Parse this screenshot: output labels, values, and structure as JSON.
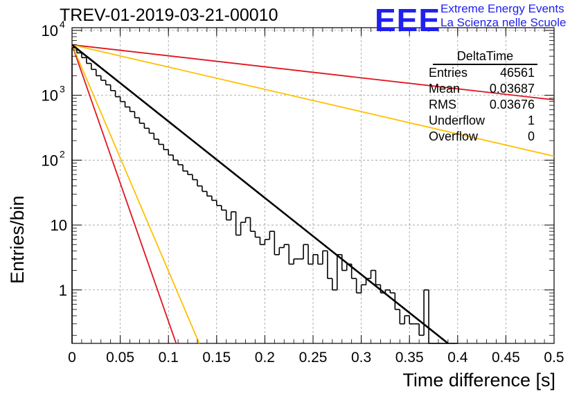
{
  "header": {
    "title": "TREV-01-2019-03-21-00010",
    "logo_text": "EEE",
    "org_line1": "Extreme Energy Events",
    "org_line2": "La Scienza nelle Scuole"
  },
  "stats_box": {
    "name": "DeltaTime",
    "rows": [
      {
        "label": "Entries",
        "value": "46561"
      },
      {
        "label": "Mean",
        "value": "0.03687"
      },
      {
        "label": "RMS",
        "value": "0.03676"
      },
      {
        "label": "Underflow",
        "value": "1"
      },
      {
        "label": "Overflow",
        "value": "0"
      }
    ]
  },
  "colors": {
    "histogram": "#000000",
    "fit": "#000000",
    "red_curve": "#e0141e",
    "orange_curve": "#ffc000",
    "logo": "#2020ee"
  },
  "chart_data": {
    "type": "line",
    "title": "TREV-01-2019-03-21-00010",
    "xlabel": "Time difference [s]",
    "ylabel": "Entries/bin",
    "xlim": [
      0,
      0.5
    ],
    "ylim": [
      0.15,
      11000
    ],
    "yscale": "log",
    "grid": true,
    "x_ticks": [
      "0",
      "0.05",
      "0.1",
      "0.15",
      "0.2",
      "0.25",
      "0.3",
      "0.35",
      "0.4",
      "0.45",
      "0.5"
    ],
    "y_ticks": [
      {
        "value": 1,
        "label": "1"
      },
      {
        "value": 10,
        "label": "10"
      },
      {
        "value": 100,
        "label": "10",
        "exp": "2"
      },
      {
        "value": 1000,
        "label": "10",
        "exp": "3"
      },
      {
        "value": 10000,
        "label": "10",
        "exp": "4"
      }
    ],
    "histogram": {
      "name": "DeltaTime",
      "bin_width": 0.005,
      "x_start": 0,
      "values": [
        5400,
        4500,
        3800,
        3100,
        2500,
        2000,
        1700,
        1450,
        1180,
        950,
        800,
        660,
        560,
        450,
        370,
        310,
        260,
        210,
        175,
        145,
        120,
        100,
        85,
        68,
        60,
        50,
        40,
        33,
        28,
        24,
        20,
        17,
        12,
        16,
        7,
        11,
        13,
        8,
        6.5,
        5,
        6,
        8,
        3.5,
        4.5,
        5,
        2.5,
        3,
        3,
        5,
        2.5,
        3.5,
        2.5,
        4,
        1.5,
        1,
        3.5,
        2,
        2.5,
        1.5,
        0.9,
        1.2,
        1.5,
        2,
        1.2,
        0.9,
        1,
        0.9,
        0.5,
        0.3,
        0.4,
        0.3,
        0.3,
        0.2,
        1,
        0.15,
        0.15,
        0.15,
        0.15,
        0.15,
        0.15
      ]
    },
    "series": [
      {
        "name": "",
        "color": "#000000",
        "x": [
          0,
          0.39
        ],
        "y": [
          6000,
          0.15
        ]
      },
      {
        "name": "",
        "color": "#e0141e",
        "x": [
          0,
          0.5
        ],
        "y": [
          6000,
          850
        ]
      },
      {
        "name": "",
        "color": "#ffc000",
        "x": [
          0,
          0.5
        ],
        "y": [
          6000,
          115
        ]
      },
      {
        "name": "",
        "color": "#e0141e",
        "x": [
          0,
          0.108
        ],
        "y": [
          6000,
          0.15
        ]
      },
      {
        "name": "",
        "color": "#ffc000",
        "x": [
          0,
          0.132
        ],
        "y": [
          6000,
          0.15
        ]
      }
    ]
  }
}
